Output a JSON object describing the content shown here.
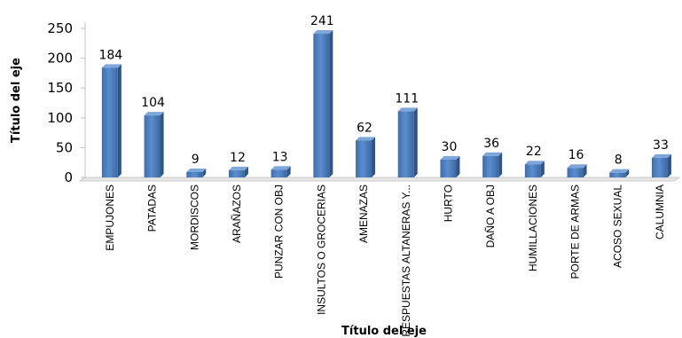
{
  "chart_data": {
    "type": "bar",
    "title": "",
    "xlabel": "Título del eje",
    "ylabel": "Título del eje",
    "ylim": [
      0,
      250
    ],
    "yticks": [
      0,
      50,
      100,
      150,
      200,
      250
    ],
    "grid": false,
    "legend": "none",
    "bar_color": "#4F81BD",
    "categories": [
      "EMPUJONES",
      "PATADAS",
      "MORDISCOS",
      "ARAÑAZOS",
      "PUNZAR CON OBJ",
      "INSULTOS O GROCERIAS",
      "AMENAZAS",
      "RESPUESTAS ALTANERAS Y...",
      "HURTO",
      "DAÑO A OBJ",
      "HUMILLACIONES",
      "PORTE DE ARMAS",
      "ACOSO SEXUAL",
      "CALUMNIA"
    ],
    "values": [
      184,
      104,
      9,
      12,
      13,
      241,
      62,
      111,
      30,
      36,
      22,
      16,
      8,
      33
    ]
  }
}
